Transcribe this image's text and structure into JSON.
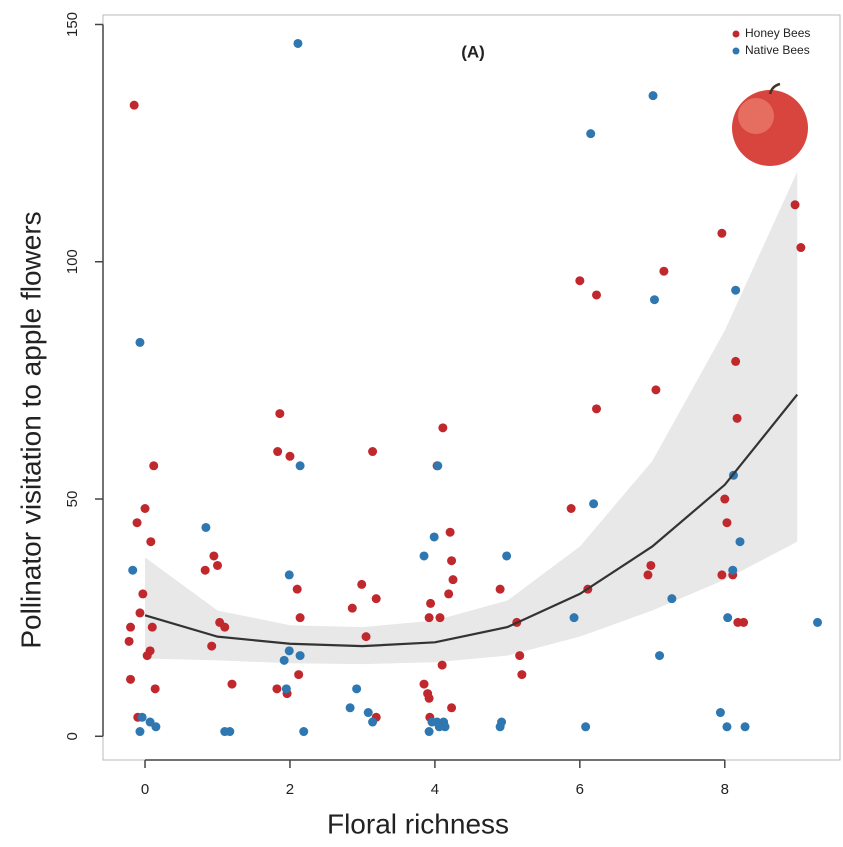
{
  "chart_data": {
    "type": "scatter",
    "title": "(A)",
    "x_label": "Floral richness",
    "y_label": "Pollinator visitation to apple flowers",
    "xlim": [
      -0.58,
      9.59
    ],
    "ylim": [
      -5,
      152
    ],
    "xticks": [
      0,
      2,
      4,
      6,
      8
    ],
    "yticks": [
      0,
      50,
      100,
      150
    ],
    "legend_position": "upper right",
    "series": [
      {
        "name": "Honey Bees",
        "color": "#c0282d",
        "x": [
          -0.15,
          -0.11,
          0.0,
          0.12,
          0.08,
          -0.2,
          -0.22,
          -0.07,
          -0.03,
          0.07,
          0.1,
          0.03,
          0.14,
          -0.2,
          -0.1,
          0.83,
          0.95,
          1.0,
          0.92,
          1.03,
          1.1,
          1.2,
          1.86,
          1.83,
          2.0,
          2.1,
          2.14,
          1.82,
          1.96,
          2.12,
          3.14,
          2.99,
          2.86,
          3.19,
          3.05,
          3.19,
          4.11,
          4.03,
          4.21,
          4.23,
          4.25,
          4.19,
          3.94,
          3.92,
          4.07,
          4.1,
          3.85,
          3.9,
          3.92,
          3.93,
          4.23,
          4.9,
          5.13,
          5.17,
          5.2,
          5.88,
          6.11,
          6.0,
          6.23,
          6.23,
          7.16,
          7.05,
          6.98,
          6.94,
          7.96,
          8.15,
          8.17,
          8.0,
          8.03,
          7.96,
          8.11,
          8.18,
          8.26,
          8.97,
          9.05
        ],
        "values": [
          133,
          45,
          48,
          57,
          41,
          23,
          20,
          26,
          30,
          18,
          23,
          17,
          10,
          12,
          4,
          35,
          38,
          36,
          19,
          24,
          23,
          11,
          68,
          60,
          59,
          31,
          25,
          10,
          9,
          13,
          60,
          32,
          27,
          29,
          21,
          4,
          65,
          57,
          43,
          37,
          33,
          30,
          28,
          25,
          25,
          15,
          11,
          9,
          8,
          4,
          6,
          31,
          24,
          17,
          13,
          48,
          31,
          96,
          93,
          69,
          98,
          73,
          36,
          34,
          106,
          79,
          67,
          50,
          45,
          34,
          34,
          24,
          24,
          112,
          103
        ]
      },
      {
        "name": "Native Bees",
        "color": "#2e77b0",
        "x": [
          2.11,
          7.01,
          6.15,
          -0.07,
          7.03,
          8.15,
          2.14,
          4.04,
          8.12,
          6.19,
          0.84,
          3.99,
          8.21,
          4.99,
          3.85,
          -0.17,
          1.99,
          8.11,
          7.27,
          5.92,
          8.04,
          9.28,
          1.99,
          2.14,
          1.92,
          7.1,
          2.92,
          1.95,
          2.83,
          3.08,
          3.14,
          -0.04,
          0.07,
          0.15,
          -0.07,
          1.1,
          1.17,
          2.19,
          3.96,
          4.03,
          4.12,
          4.06,
          4.14,
          3.92,
          4.9,
          4.92,
          6.08,
          7.94,
          8.03,
          8.28
        ],
        "values": [
          146,
          135,
          127,
          83,
          92,
          94,
          57,
          57,
          55,
          49,
          44,
          42,
          41,
          38,
          38,
          35,
          34,
          35,
          29,
          25,
          25,
          24,
          18,
          17,
          16,
          17,
          10,
          10,
          6,
          5,
          3,
          4,
          3,
          2,
          1,
          1,
          1,
          1,
          3,
          3,
          3,
          2,
          2,
          1,
          2,
          3,
          2,
          5,
          2,
          2
        ]
      }
    ],
    "fit": {
      "color": "#333333",
      "band_color": "#e8e8e8",
      "x": [
        0,
        1,
        2,
        3,
        4,
        5,
        6,
        7,
        8,
        9
      ],
      "values": [
        25.5,
        21,
        19.5,
        19,
        19.8,
        23,
        30,
        40,
        53,
        72
      ],
      "lower": [
        16.4,
        16,
        15.4,
        15.2,
        15.6,
        17,
        21,
        26.5,
        33,
        41
      ],
      "upper": [
        37.7,
        26.5,
        23.4,
        23,
        24.4,
        28.6,
        40,
        58,
        85.5,
        119
      ]
    }
  }
}
